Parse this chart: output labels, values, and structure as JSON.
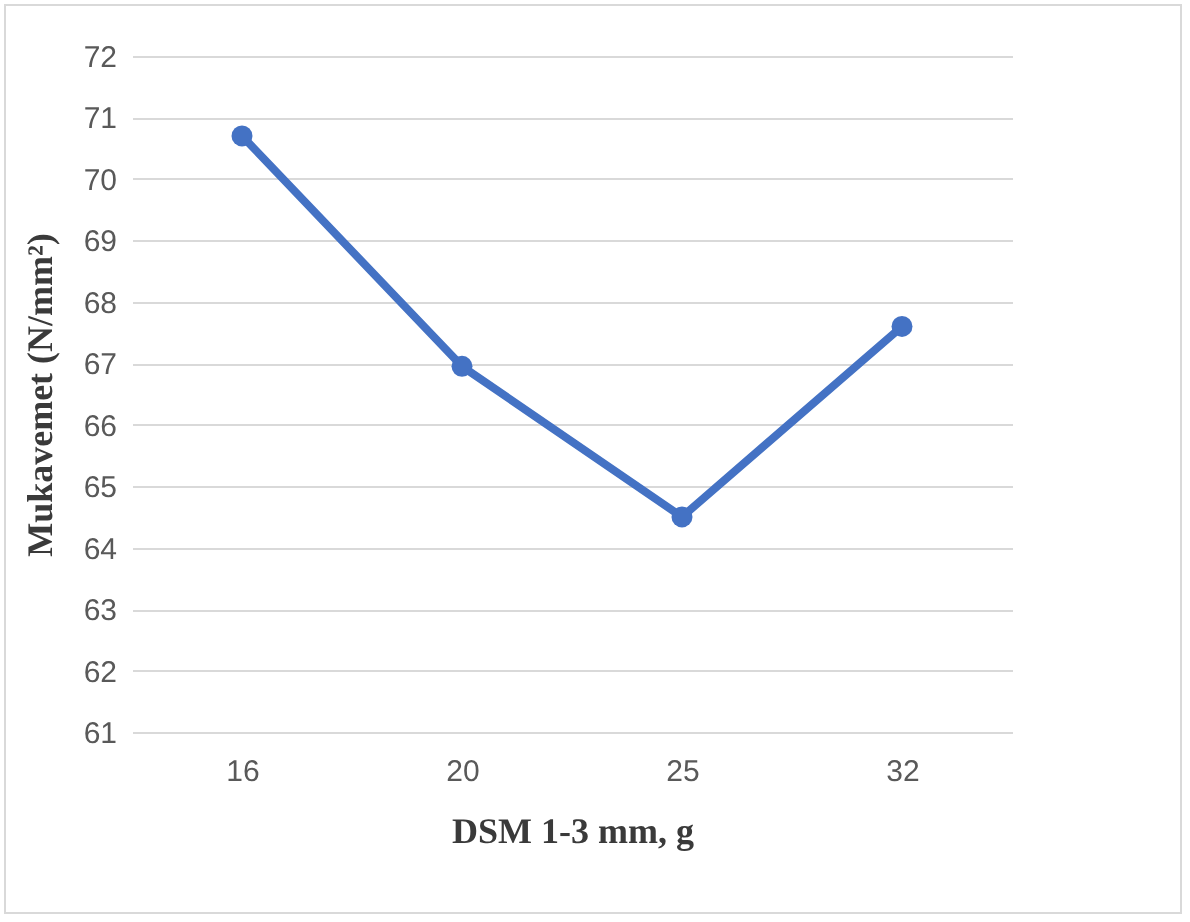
{
  "chart_data": {
    "type": "line",
    "xlabel": "DSM 1-3 mm, g",
    "ylabel": "Mukavemet (N/mm²)",
    "categories": [
      "16",
      "20",
      "25",
      "32"
    ],
    "series": [
      {
        "color": "#4472c4",
        "values": [
          70.7,
          66.95,
          64.5,
          67.6
        ]
      }
    ],
    "ylim": [
      61,
      72
    ],
    "yticks": [
      61,
      62,
      63,
      64,
      65,
      66,
      67,
      68,
      69,
      70,
      71,
      72
    ],
    "grid": "y",
    "marker": "circle",
    "line_style": "solid",
    "legend": false
  }
}
